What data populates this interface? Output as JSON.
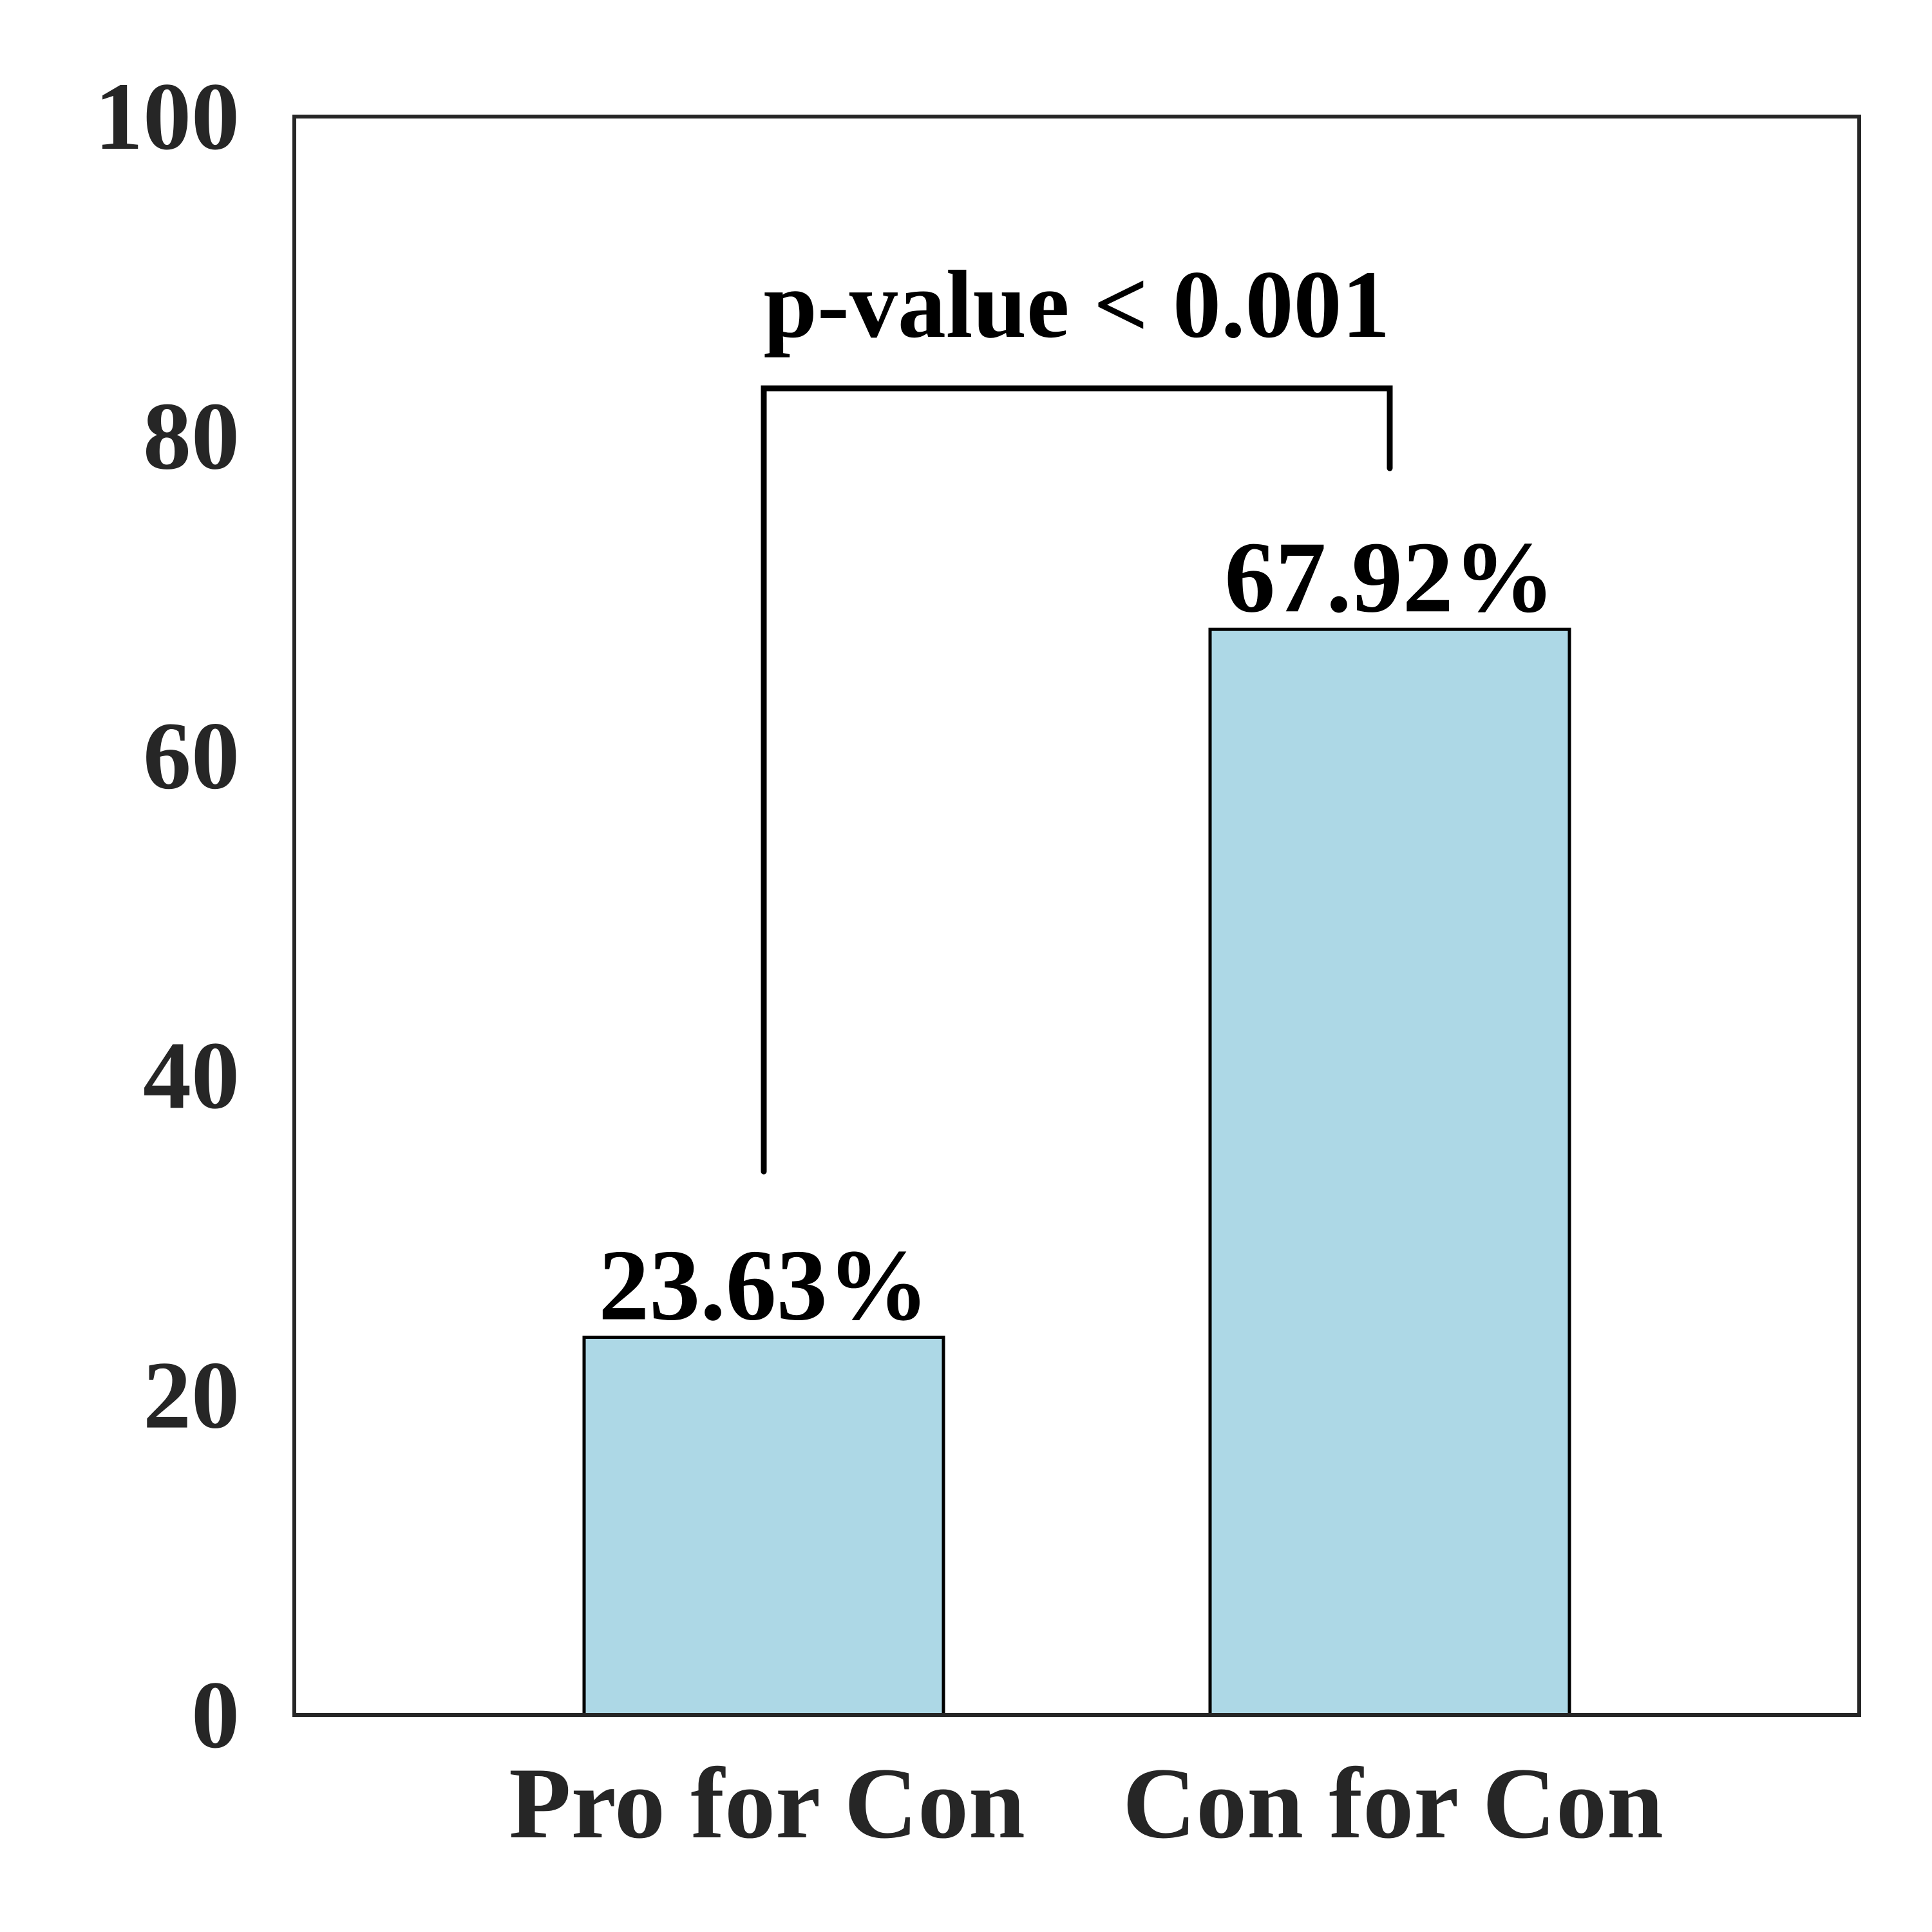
{
  "chart_data": {
    "type": "bar",
    "categories": [
      "Pro for Con",
      "Con for Con"
    ],
    "values": [
      23.63,
      67.92
    ],
    "data_labels": [
      "23.63%",
      "67.92%"
    ],
    "title": "",
    "xlabel": "",
    "ylabel": "",
    "ylim": [
      0,
      100
    ],
    "yticks": [
      0,
      20,
      40,
      60,
      80,
      100
    ],
    "ytick_labels": [
      "0",
      "20",
      "40",
      "60",
      "80",
      "100"
    ],
    "grid": false,
    "bar_color": "#add8e6",
    "bar_edge_color": "#000000",
    "annotation": {
      "text": "p-value < 0.001",
      "bracket_between": [
        "Pro for Con",
        "Con for Con"
      ],
      "bracket_top": 83,
      "left_leg_bottom": 34,
      "right_leg_bottom": 78
    }
  }
}
